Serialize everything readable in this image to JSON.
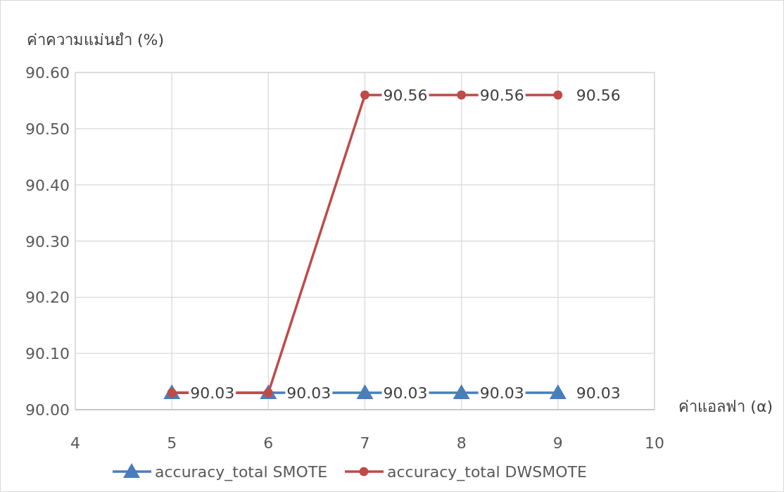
{
  "chart_data": {
    "type": "line",
    "ylabel": "ค่าความแม่นยำ (%)",
    "xlabel": "ค่าแอลฟา (α)",
    "x": [
      5,
      6,
      7,
      8,
      9
    ],
    "series": [
      {
        "name": "accuracy_total SMOTE",
        "color": "#4a7ebb",
        "marker": "triangle",
        "values": [
          90.03,
          90.03,
          90.03,
          90.03,
          90.03
        ],
        "value_labels": [
          "90.03",
          "90.03",
          "90.03",
          "90.03",
          "90.03"
        ]
      },
      {
        "name": "accuracy_total DWSMOTE",
        "color": "#be4b48",
        "marker": "circle",
        "values": [
          90.03,
          90.03,
          90.56,
          90.56,
          90.56
        ],
        "value_labels": [
          null,
          null,
          "90.56",
          "90.56",
          "90.56"
        ]
      }
    ],
    "xlim": [
      4,
      10
    ],
    "xticks": [
      4,
      5,
      6,
      7,
      8,
      9,
      10
    ],
    "ylim": [
      90.0,
      90.6
    ],
    "yticks": [
      {
        "value": 90.0,
        "label": "90.00"
      },
      {
        "value": 90.1,
        "label": "90.10"
      },
      {
        "value": 90.2,
        "label": "90.20"
      },
      {
        "value": 90.3,
        "label": "90.30"
      },
      {
        "value": 90.4,
        "label": "90.40"
      },
      {
        "value": 90.5,
        "label": "90.50"
      },
      {
        "value": 90.6,
        "label": "90.60"
      }
    ],
    "grid": true,
    "legend": "bottom",
    "line_style": "solid"
  }
}
